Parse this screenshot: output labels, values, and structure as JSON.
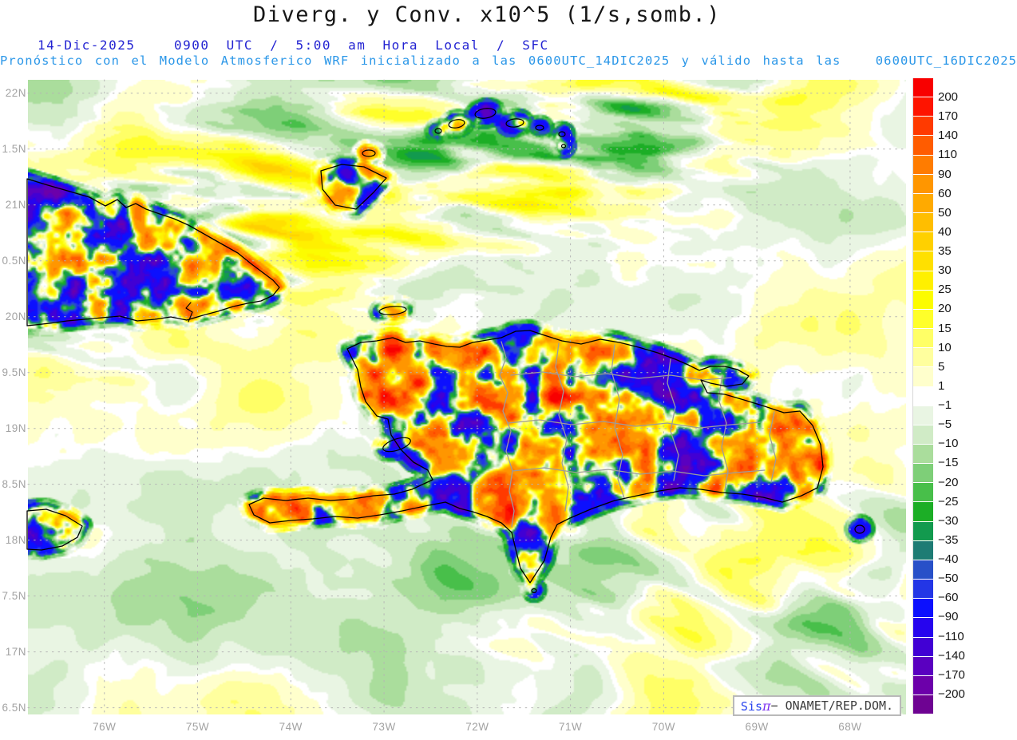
{
  "header": {
    "title": "Diverg. y Conv. x10^5 (1/s,somb.)",
    "date": "14-Dic-2025",
    "time_line": "0900 UTC / 5:00 am Hora Local / SFC",
    "forecast_line": "Pronóstico con el Modelo Atmosferico WRF inicializado a las 0600UTC_14DIC2025 y válido hasta las   0600UTC_16DIC2025",
    "title_color": "#161616",
    "datetime_color": "#2323d2",
    "forecast_color": "#2b97e8"
  },
  "chart_data": {
    "type": "heatmap",
    "title": "Diverg. y Conv. x10^5 (1/s,somb.)",
    "variable": "Divergencia y Convergencia x10^5 (1/s, sombreado)",
    "level": "SFC",
    "valid_label": "0900 UTC / 5:00 am Hora Local",
    "extent": {
      "lon_min": -76.82,
      "lon_max": -67.4,
      "lat_min": 16.44,
      "lat_max": 22.12
    },
    "grid": true,
    "lon_ticks": [
      {
        "label": "76W",
        "lon": -76
      },
      {
        "label": "75W",
        "lon": -75
      },
      {
        "label": "74W",
        "lon": -74
      },
      {
        "label": "73W",
        "lon": -73
      },
      {
        "label": "72W",
        "lon": -72
      },
      {
        "label": "71W",
        "lon": -71
      },
      {
        "label": "70W",
        "lon": -70
      },
      {
        "label": "69W",
        "lon": -69
      },
      {
        "label": "68W",
        "lon": -68
      }
    ],
    "lat_ticks": [
      {
        "label": "22N",
        "lat": 22
      },
      {
        "label": "1.5N",
        "lat": 21.5
      },
      {
        "label": "21N",
        "lat": 21
      },
      {
        "label": "0.5N",
        "lat": 20.5
      },
      {
        "label": "20N",
        "lat": 20
      },
      {
        "label": "9.5N",
        "lat": 19.5
      },
      {
        "label": "19N",
        "lat": 19
      },
      {
        "label": "8.5N",
        "lat": 18.5
      },
      {
        "label": "18N",
        "lat": 18
      },
      {
        "label": "7.5N",
        "lat": 17.5
      },
      {
        "label": "17N",
        "lat": 17
      },
      {
        "label": "6.5N",
        "lat": 16.5
      }
    ],
    "colorbar": {
      "position": "right",
      "levels": [
        200,
        170,
        140,
        110,
        90,
        60,
        50,
        40,
        35,
        30,
        25,
        20,
        15,
        10,
        5,
        1,
        -1,
        -5,
        -10,
        -15,
        -20,
        -25,
        -30,
        -35,
        -40,
        -50,
        -60,
        -90,
        -110,
        -140,
        -170,
        -200
      ],
      "labels": [
        "200",
        "170",
        "140",
        "110",
        "90",
        "60",
        "50",
        "40",
        "35",
        "30",
        "25",
        "20",
        "15",
        "10",
        "5",
        "1",
        "−1",
        "−5",
        "−10",
        "−15",
        "−20",
        "−25",
        "−30",
        "−35",
        "−40",
        "−50",
        "−60",
        "−90",
        "−110",
        "−140",
        "−170",
        "−200"
      ],
      "colors": [
        "#f80000",
        "#fe1400",
        "#ff3a00",
        "#ff5c00",
        "#ff7c00",
        "#ff9600",
        "#ffaa00",
        "#ffbe00",
        "#ffd000",
        "#ffe000",
        "#fff000",
        "#fcfc00",
        "#ffff2a",
        "#ffff66",
        "#ffff9e",
        "#ffffcc",
        "#ffffff",
        "#e9f5e3",
        "#d0ebc6",
        "#aadd9c",
        "#7ecf78",
        "#48bf4a",
        "#1cae26",
        "#129a4e",
        "#1e7c74",
        "#2850c8",
        "#2336e6",
        "#0c10fe",
        "#2604ee",
        "#4100d4",
        "#5a00c0",
        "#6c00aa",
        "#6e0392"
      ]
    },
    "map_features": [
      "cuba-east-coastline",
      "hispaniola-coastline",
      "haiti-dr-border",
      "dr-province-borders",
      "jamaica-east-coastline",
      "great-inagua-island",
      "little-inagua-island",
      "turks-and-caicos-cays",
      "tortuga-island",
      "gonave-island",
      "mona-island",
      "beata-islet"
    ],
    "attribution": {
      "brand_prefix": "Sis",
      "brand_pi": "π",
      "text": "− ONAMET/REP.DOM."
    }
  }
}
